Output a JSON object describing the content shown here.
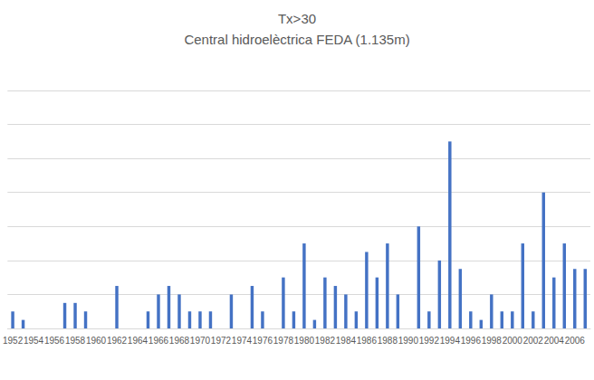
{
  "chart_data": {
    "type": "bar",
    "title": "Tx>30",
    "subtitle": "Central hidroelèctrica FEDA (1.135m)",
    "categories": [
      "1952",
      null,
      "1954",
      null,
      "1956",
      null,
      "1958",
      null,
      "1960",
      null,
      "1962",
      null,
      "1964",
      null,
      "1966",
      null,
      "1968",
      null,
      "1970",
      null,
      "1972",
      null,
      "1974",
      null,
      "1976",
      null,
      "1978",
      null,
      "1980",
      null,
      "1982",
      null,
      "1984",
      null,
      "1986",
      null,
      "1988",
      null,
      "1990",
      null,
      "1992",
      null,
      "1994",
      null,
      "1996",
      null,
      "1998",
      null,
      "2000",
      null,
      "2002",
      null,
      "2004",
      null,
      "2006",
      null
    ],
    "values": [
      2,
      1,
      0,
      0,
      0,
      3,
      3,
      2,
      0,
      0,
      5,
      0,
      0,
      2,
      4,
      5,
      4,
      2,
      2,
      2,
      0,
      4,
      0,
      5,
      2,
      0,
      6,
      2,
      10,
      1,
      6,
      5,
      4,
      2,
      9,
      6,
      10,
      4,
      0,
      12,
      2,
      8,
      22,
      7,
      2,
      1,
      4,
      2,
      2,
      10,
      2,
      16,
      6,
      10,
      7,
      7
    ],
    "color": "#4472c4",
    "ylim": [
      0,
      28
    ],
    "yticks": [
      0,
      4,
      8,
      12,
      16,
      20,
      24,
      28
    ],
    "grid": true,
    "tick_labels": "x"
  }
}
